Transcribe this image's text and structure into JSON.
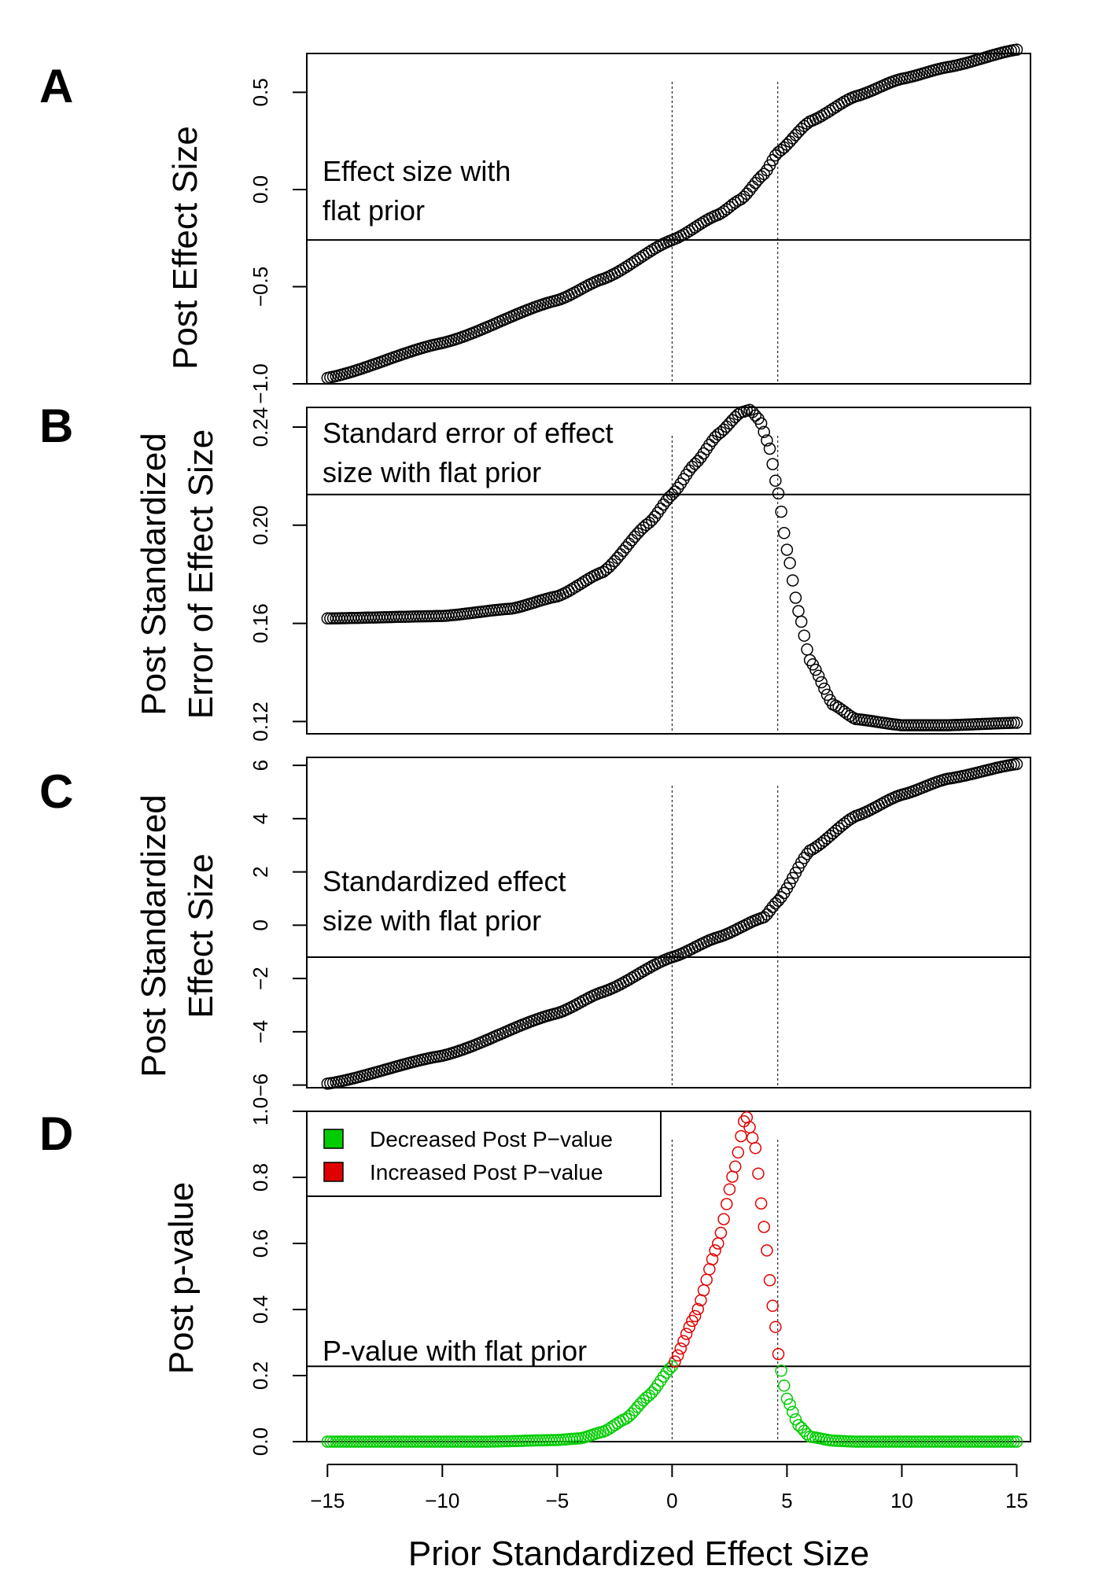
{
  "x_axis": {
    "label": "Prior Standardized Effect Size",
    "ticks": [
      "−15",
      "−10",
      "−5",
      "0",
      "5",
      "10",
      "15"
    ],
    "tick_values": [
      -15,
      -10,
      -5,
      0,
      5,
      10,
      15
    ]
  },
  "vertical_reference_lines": [
    0,
    4.6
  ],
  "colors": {
    "points": "#000000",
    "decreased": "#00cc00",
    "increased": "#e00000"
  },
  "panels": [
    {
      "letter": "A",
      "ylabel": [
        "Post Effect Size"
      ],
      "yticks": [
        "−1.0",
        "−0.5",
        "0.0",
        "0.5"
      ],
      "annotation": [
        "Effect size with",
        "flat prior"
      ]
    },
    {
      "letter": "B",
      "ylabel": [
        "Post Standardized",
        "Error of Effect Size"
      ],
      "yticks": [
        "0.12",
        "0.16",
        "0.20",
        "0.24"
      ],
      "annotation": [
        "Standard error of effect",
        "size with flat prior"
      ]
    },
    {
      "letter": "C",
      "ylabel": [
        "Post Standardized",
        "Effect Size"
      ],
      "yticks": [
        "−6",
        "−4",
        "−2",
        "0",
        "2",
        "4",
        "6"
      ],
      "annotation": [
        "Standardized effect",
        "size with flat prior"
      ]
    },
    {
      "letter": "D",
      "ylabel": [
        "Post p-value"
      ],
      "yticks": [
        "0.0",
        "0.2",
        "0.4",
        "0.6",
        "0.8",
        "1.0"
      ],
      "annotation": [
        "P-value with flat prior"
      ],
      "legend": [
        "Decreased Post P−value",
        "Increased Post P−value"
      ]
    }
  ],
  "chart_data": [
    {
      "type": "scatter",
      "panel": "A",
      "ylim": [
        -1.0,
        0.7
      ],
      "xlim": [
        -15,
        15
      ],
      "hline": -0.26,
      "curve_points": [
        [
          -15,
          -0.97
        ],
        [
          -10,
          -0.79
        ],
        [
          -5,
          -0.57
        ],
        [
          -3,
          -0.46
        ],
        [
          0,
          -0.26
        ],
        [
          2,
          -0.13
        ],
        [
          3,
          -0.05
        ],
        [
          4,
          0.08
        ],
        [
          4.6,
          0.19
        ],
        [
          6,
          0.35
        ],
        [
          8,
          0.48
        ],
        [
          10,
          0.57
        ],
        [
          12,
          0.63
        ],
        [
          15,
          0.72
        ]
      ]
    },
    {
      "type": "scatter",
      "panel": "B",
      "ylim": [
        0.115,
        0.248
      ],
      "xlim": [
        -15,
        15
      ],
      "hline": 0.2125,
      "curve_points": [
        [
          -15,
          0.162
        ],
        [
          -10,
          0.163
        ],
        [
          -7,
          0.166
        ],
        [
          -5,
          0.171
        ],
        [
          -3,
          0.181
        ],
        [
          -1,
          0.201
        ],
        [
          0,
          0.2125
        ],
        [
          1,
          0.225
        ],
        [
          2,
          0.237
        ],
        [
          3,
          0.246
        ],
        [
          3.4,
          0.247
        ],
        [
          3.8,
          0.243
        ],
        [
          4.2,
          0.233
        ],
        [
          4.6,
          0.214
        ],
        [
          5,
          0.19
        ],
        [
          5.5,
          0.165
        ],
        [
          6,
          0.145
        ],
        [
          7,
          0.127
        ],
        [
          8,
          0.121
        ],
        [
          10,
          0.1185
        ],
        [
          12,
          0.1185
        ],
        [
          15,
          0.1195
        ]
      ]
    },
    {
      "type": "scatter",
      "panel": "C",
      "ylim": [
        -6.1,
        6.3
      ],
      "xlim": [
        -15,
        15
      ],
      "hline": -1.2,
      "curve_points": [
        [
          -15,
          -5.95
        ],
        [
          -10,
          -4.9
        ],
        [
          -5,
          -3.3
        ],
        [
          -3,
          -2.5
        ],
        [
          0,
          -1.2
        ],
        [
          2,
          -0.45
        ],
        [
          4,
          0.3
        ],
        [
          4.6,
          0.9
        ],
        [
          6,
          2.8
        ],
        [
          8,
          4.1
        ],
        [
          10,
          4.9
        ],
        [
          12,
          5.5
        ],
        [
          15,
          6.05
        ]
      ]
    },
    {
      "type": "scatter",
      "panel": "D",
      "ylim": [
        0.0,
        1.0
      ],
      "xlim": [
        -15,
        15
      ],
      "hline": 0.228,
      "series": [
        {
          "name": "Decreased Post P−value",
          "color": "#00cc00"
        },
        {
          "name": "Increased Post P−value",
          "color": "#e00000"
        }
      ],
      "curve_points": [
        [
          -15,
          0.0
        ],
        [
          -8,
          0.0
        ],
        [
          -5,
          0.005
        ],
        [
          -4,
          0.01
        ],
        [
          -3,
          0.03
        ],
        [
          -2,
          0.07
        ],
        [
          -1,
          0.14
        ],
        [
          0,
          0.228
        ],
        [
          1,
          0.38
        ],
        [
          2,
          0.6
        ],
        [
          2.7,
          0.82
        ],
        [
          3.2,
          0.99
        ],
        [
          3.6,
          0.9
        ],
        [
          4.0,
          0.65
        ],
        [
          4.4,
          0.4
        ],
        [
          4.7,
          0.228
        ],
        [
          5,
          0.13
        ],
        [
          5.5,
          0.05
        ],
        [
          6,
          0.015
        ],
        [
          7,
          0.003
        ],
        [
          8,
          0.0
        ],
        [
          15,
          0.0
        ]
      ]
    }
  ]
}
